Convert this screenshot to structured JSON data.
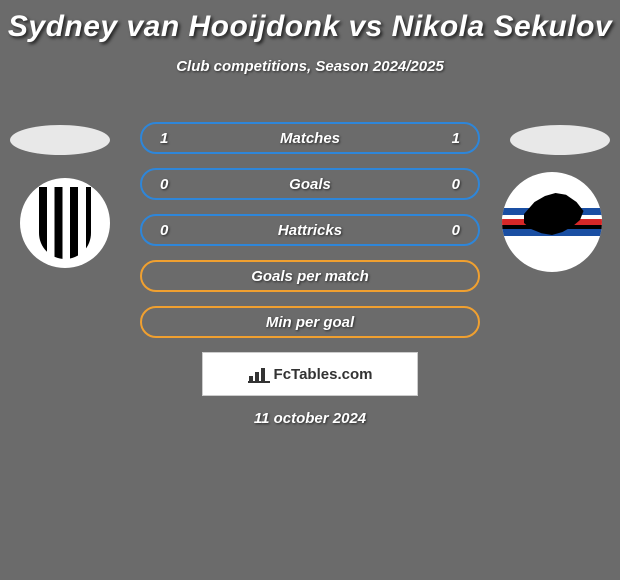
{
  "title": "Sydney van Hooijdonk vs Nikola Sekulov",
  "subtitle": "Club competitions, Season 2024/2025",
  "date": "11 october 2024",
  "logo_text": "FcTables.com",
  "colors": {
    "background": "#6b6b6b",
    "text": "#ffffff",
    "row_border_blue": "#2e86d9",
    "row_border_orange": "#f0a030",
    "logo_bg": "#ffffff",
    "logo_border": "#cccccc",
    "logo_text": "#333333"
  },
  "stat_rows": [
    {
      "left": "1",
      "label": "Matches",
      "right": "1",
      "border": "#2e86d9"
    },
    {
      "left": "0",
      "label": "Goals",
      "right": "0",
      "border": "#2e86d9"
    },
    {
      "left": "0",
      "label": "Hattricks",
      "right": "0",
      "border": "#2e86d9"
    },
    {
      "left": "",
      "label": "Goals per match",
      "right": "",
      "border": "#f0a030"
    },
    {
      "left": "",
      "label": "Min per goal",
      "right": "",
      "border": "#f0a030"
    }
  ],
  "players": {
    "left": {
      "name": "Sydney van Hooijdonk",
      "club": "Cesena"
    },
    "right": {
      "name": "Nikola Sekulov",
      "club": "Sampdoria"
    }
  }
}
